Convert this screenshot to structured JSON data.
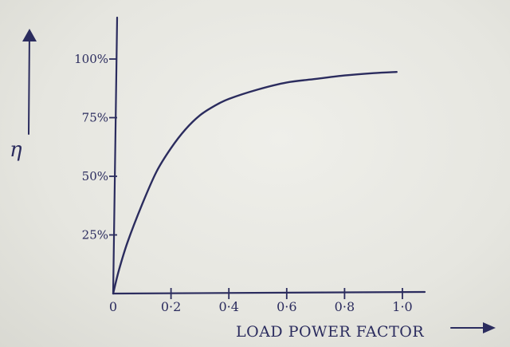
{
  "chart_data": {
    "type": "line",
    "title": "",
    "xlabel": "LOAD POWER FACTOR",
    "ylabel": "η",
    "x_ticks": [
      "0",
      "0·2",
      "0·4",
      "0·6",
      "0·8",
      "1·0"
    ],
    "x_tick_values": [
      0,
      0.2,
      0.4,
      0.6,
      0.8,
      1.0
    ],
    "y_ticks": [
      "25%",
      "50%",
      "75%",
      "100%"
    ],
    "y_tick_values": [
      25,
      50,
      75,
      100
    ],
    "xlim": [
      0,
      1.0
    ],
    "ylim": [
      0,
      100
    ],
    "grid": false,
    "series": [
      {
        "x": [
          0,
          0.02,
          0.05,
          0.1,
          0.15,
          0.2,
          0.25,
          0.3,
          0.35,
          0.4,
          0.5,
          0.6,
          0.7,
          0.8,
          0.9,
          0.98
        ],
        "y": [
          0,
          10,
          22,
          38,
          52,
          62,
          70,
          76,
          80,
          83,
          87,
          90,
          91.5,
          93,
          94,
          94.5
        ]
      }
    ],
    "colors": {
      "ink": "#2b2c5e",
      "paper": "#e9e9e3"
    }
  }
}
